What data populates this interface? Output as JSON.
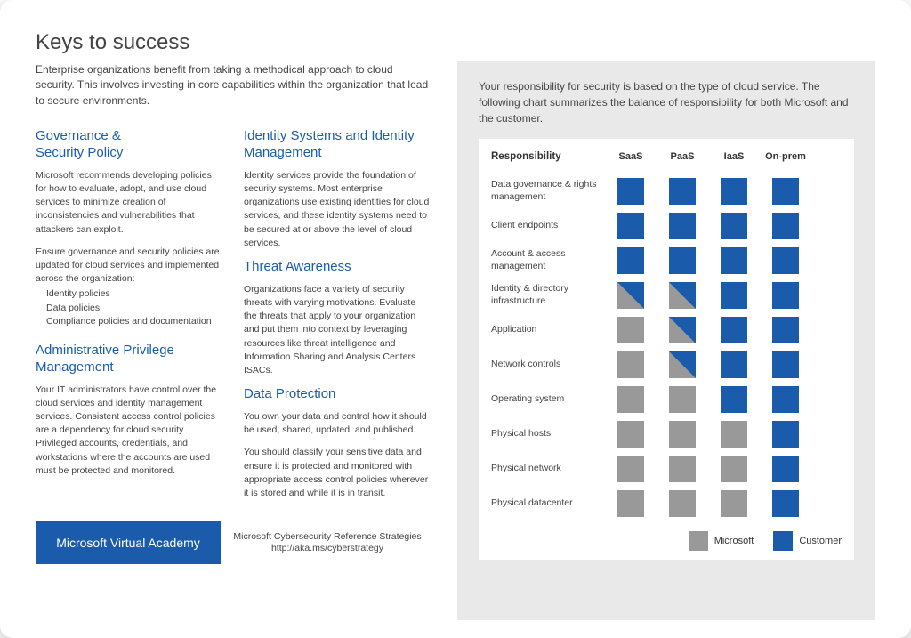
{
  "title": "Keys to success",
  "intro": "Enterprise organizations benefit from taking a methodical approach to cloud security. This involves investing in core capabilities within the organization that lead to secure environments.",
  "sections": {
    "gov": {
      "title": "Governance &\nSecurity Policy",
      "p1": "Microsoft recommends developing policies for how to evaluate, adopt, and use cloud services to minimize creation of inconsistencies and vulnerabilities that attackers can exploit.",
      "p2": "Ensure governance and security policies are updated for cloud services and implemented across the organization:",
      "b1": "Identity policies",
      "b2": "Data policies",
      "b3": "Compliance policies and documentation"
    },
    "admin": {
      "title": "Administrative Privilege Management",
      "p1": "Your IT administrators have control over the cloud services and identity management services. Consistent access control policies are a dependency for cloud security. Privileged accounts, credentials, and workstations where the accounts are used must be protected and monitored."
    },
    "identity": {
      "title": "Identity Systems and Identity Management",
      "p1": "Identity services provide the foundation of security systems. Most enterprise organizations use existing identities for cloud services, and these identity systems need to be secured at or above the level of cloud services."
    },
    "threat": {
      "title": "Threat Awareness",
      "p1": "Organizations face a variety of security threats with varying motivations. Evaluate the threats that apply to your organization and put them into context by leveraging resources like threat intelligence and Information Sharing and Analysis Centers ISACs."
    },
    "data": {
      "title": "Data Protection",
      "p1": "You own your data and control how it should be used, shared, updated, and published.",
      "p2": "You should classify your sensitive data and ensure it is protected and monitored with appropriate access control policies wherever it is stored and while it is in transit."
    }
  },
  "footer": {
    "block": "Microsoft Virtual Academy",
    "line1": "Microsoft Cybersecurity Reference Strategies",
    "line2": "http://aka.ms/cyberstrategy"
  },
  "chart": {
    "intro": "Your responsibility for security is based on the type of cloud service. The following chart summarizes the balance of responsibility for both Microsoft and the customer.",
    "header_label": "Responsibility",
    "columns": [
      "SaaS",
      "PaaS",
      "IaaS",
      "On-prem"
    ],
    "rows": [
      {
        "label": "Data governance & rights management",
        "cells": [
          "c",
          "c",
          "c",
          "c"
        ]
      },
      {
        "label": "Client endpoints",
        "cells": [
          "c",
          "c",
          "c",
          "c"
        ]
      },
      {
        "label": "Account & access management",
        "cells": [
          "c",
          "c",
          "c",
          "c"
        ]
      },
      {
        "label": "Identity & directory infrastructure",
        "cells": [
          "s",
          "s",
          "c",
          "c"
        ]
      },
      {
        "label": "Application",
        "cells": [
          "m",
          "s",
          "c",
          "c"
        ]
      },
      {
        "label": "Network controls",
        "cells": [
          "m",
          "s",
          "c",
          "c"
        ]
      },
      {
        "label": "Operating system",
        "cells": [
          "m",
          "m",
          "c",
          "c"
        ]
      },
      {
        "label": "Physical hosts",
        "cells": [
          "m",
          "m",
          "m",
          "c"
        ]
      },
      {
        "label": "Physical network",
        "cells": [
          "m",
          "m",
          "m",
          "c"
        ]
      },
      {
        "label": "Physical datacenter",
        "cells": [
          "m",
          "m",
          "m",
          "c"
        ]
      }
    ],
    "legend": {
      "microsoft": {
        "label": "Microsoft",
        "color": "#999999"
      },
      "customer": {
        "label": "Customer",
        "color": "#1a5cab"
      }
    },
    "colors": {
      "customer": "#1a5cab",
      "microsoft": "#999999",
      "page_bg": "#ffffff",
      "panel_bg": "#e9e9e9",
      "text": "#444444",
      "heading": "#1a5cab"
    }
  }
}
